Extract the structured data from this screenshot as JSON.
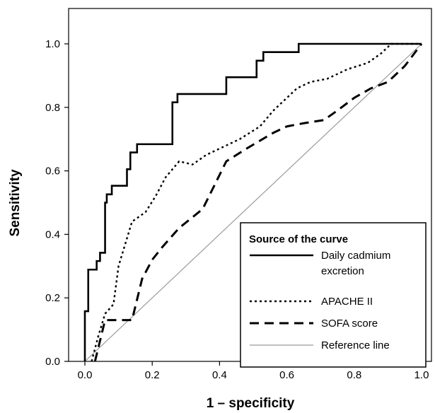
{
  "chart_data": {
    "type": "line",
    "xlabel": "1 – specificity",
    "ylabel": "Sensitivity",
    "xlim": [
      0,
      1
    ],
    "ylim": [
      0,
      1
    ],
    "x_ticks": [
      "0.0",
      "0.2",
      "0.4",
      "0.6",
      "0.8",
      "1.0"
    ],
    "y_ticks": [
      "0.0",
      "0.2",
      "0.4",
      "0.6",
      "0.8",
      "1.0"
    ],
    "grid": false,
    "legend": {
      "title": "Source of the curve",
      "position": "bottom-right"
    },
    "series": [
      {
        "name": "Daily cadmium excretion",
        "name_lines": [
          "Daily cadmium",
          "excretion"
        ],
        "style": "solid-thick",
        "color": "#000000",
        "points": [
          [
            0,
            0
          ],
          [
            0,
            0.158
          ],
          [
            0.01,
            0.158
          ],
          [
            0.01,
            0.289
          ],
          [
            0.035,
            0.289
          ],
          [
            0.035,
            0.316
          ],
          [
            0.045,
            0.316
          ],
          [
            0.045,
            0.342
          ],
          [
            0.06,
            0.342
          ],
          [
            0.06,
            0.5
          ],
          [
            0.065,
            0.5
          ],
          [
            0.065,
            0.526
          ],
          [
            0.08,
            0.526
          ],
          [
            0.08,
            0.553
          ],
          [
            0.125,
            0.553
          ],
          [
            0.125,
            0.605
          ],
          [
            0.135,
            0.605
          ],
          [
            0.135,
            0.658
          ],
          [
            0.155,
            0.658
          ],
          [
            0.155,
            0.684
          ],
          [
            0.26,
            0.684
          ],
          [
            0.26,
            0.816
          ],
          [
            0.275,
            0.816
          ],
          [
            0.275,
            0.842
          ],
          [
            0.42,
            0.842
          ],
          [
            0.42,
            0.895
          ],
          [
            0.51,
            0.895
          ],
          [
            0.51,
            0.947
          ],
          [
            0.53,
            0.947
          ],
          [
            0.53,
            0.974
          ],
          [
            0.635,
            0.974
          ],
          [
            0.635,
            1.0
          ],
          [
            1,
            1
          ]
        ]
      },
      {
        "name": "APACHE II",
        "style": "dotted",
        "color": "#000000",
        "points": [
          [
            0.02,
            0
          ],
          [
            0.04,
            0.08
          ],
          [
            0.06,
            0.15
          ],
          [
            0.085,
            0.18
          ],
          [
            0.1,
            0.3
          ],
          [
            0.12,
            0.37
          ],
          [
            0.14,
            0.44
          ],
          [
            0.18,
            0.47
          ],
          [
            0.21,
            0.52
          ],
          [
            0.24,
            0.58
          ],
          [
            0.28,
            0.63
          ],
          [
            0.32,
            0.62
          ],
          [
            0.36,
            0.65
          ],
          [
            0.42,
            0.68
          ],
          [
            0.46,
            0.7
          ],
          [
            0.52,
            0.74
          ],
          [
            0.56,
            0.79
          ],
          [
            0.6,
            0.83
          ],
          [
            0.63,
            0.86
          ],
          [
            0.67,
            0.88
          ],
          [
            0.72,
            0.89
          ],
          [
            0.78,
            0.92
          ],
          [
            0.84,
            0.94
          ],
          [
            0.88,
            0.97
          ],
          [
            0.91,
            1.0
          ],
          [
            1,
            1
          ]
        ]
      },
      {
        "name": "SOFA score",
        "style": "dashed",
        "color": "#000000",
        "points": [
          [
            0.03,
            0
          ],
          [
            0.06,
            0.13
          ],
          [
            0.14,
            0.13
          ],
          [
            0.17,
            0.26
          ],
          [
            0.2,
            0.32
          ],
          [
            0.23,
            0.36
          ],
          [
            0.28,
            0.42
          ],
          [
            0.35,
            0.48
          ],
          [
            0.42,
            0.63
          ],
          [
            0.48,
            0.67
          ],
          [
            0.56,
            0.72
          ],
          [
            0.6,
            0.74
          ],
          [
            0.65,
            0.75
          ],
          [
            0.71,
            0.76
          ],
          [
            0.75,
            0.79
          ],
          [
            0.8,
            0.83
          ],
          [
            0.85,
            0.86
          ],
          [
            0.9,
            0.88
          ],
          [
            0.95,
            0.93
          ],
          [
            1,
            1
          ]
        ]
      },
      {
        "name": "Reference line",
        "style": "thin-gray",
        "color": "#9a9a9a",
        "points": [
          [
            0,
            0
          ],
          [
            1,
            1
          ]
        ]
      }
    ]
  }
}
